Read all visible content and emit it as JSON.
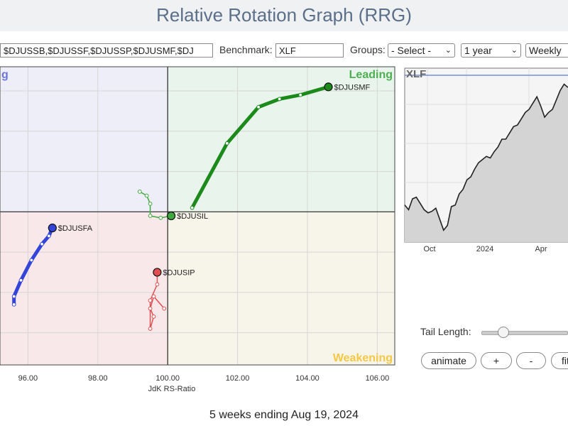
{
  "page_title": "Relative Rotation Graph (RRG)",
  "symbols_field_value": "$DJUSSB,$DJUSSF,$DJUSSP,$DJUSMF,$DJ",
  "benchmark_label": "Benchmark:",
  "benchmark_value": "XLF",
  "groups_label": "Groups:",
  "groups_selected": "- Select -",
  "period_selected": "1 year",
  "frequency_selected": "Weekly",
  "tail_length_label": "Tail Length:",
  "tail_length_level": 0.25,
  "buttons": {
    "animate": "animate",
    "plus": "+",
    "minus": "-",
    "fit": "fit"
  },
  "footer": "5 weeks ending Aug 19, 2024",
  "colors": {
    "improving_bg": "#eeeef9",
    "leading_bg": "#e9f4ec",
    "lagging_bg": "#f9e8ea",
    "weakening_bg": "#f7f4ea",
    "improving_text": "#6b74d8",
    "leading_text": "#4caf50",
    "weakening_text": "#f5c842"
  },
  "chart_data": [
    {
      "type": "scatter",
      "title": "",
      "xlabel": "JdK RS-Ratio",
      "ylabel": "",
      "xlim": [
        95.2,
        106.5
      ],
      "ylim": [
        96.2,
        103.6
      ],
      "x_ticks": [
        "96.00",
        "98.00",
        "100.00",
        "102.00",
        "104.00",
        "106.00"
      ],
      "y_ticks": [],
      "grid": true,
      "quadrant_labels": {
        "improving": "g",
        "leading": "Leading",
        "weakening": "Weakening"
      },
      "series": [
        {
          "name": "$DJUSMF",
          "color": "#1b8a1b",
          "points": [
            [
              100.7,
              100.1
            ],
            [
              101.7,
              101.7
            ],
            [
              102.6,
              102.6
            ],
            [
              103.2,
              102.8
            ],
            [
              103.8,
              102.9
            ],
            [
              104.6,
              103.1
            ]
          ]
        },
        {
          "name": "$DJUSIL",
          "color": "#3fa83f",
          "points": [
            [
              99.2,
              100.5
            ],
            [
              99.4,
              100.4
            ],
            [
              99.5,
              100.2
            ],
            [
              99.5,
              99.9
            ],
            [
              99.8,
              99.85
            ],
            [
              100.1,
              99.9
            ]
          ]
        },
        {
          "name": "$DJUSFA",
          "color": "#3345d9",
          "points": [
            [
              95.6,
              97.7
            ],
            [
              95.6,
              97.9
            ],
            [
              95.8,
              98.3
            ],
            [
              96.1,
              98.8
            ],
            [
              96.4,
              99.2
            ],
            [
              96.6,
              99.4
            ],
            [
              96.7,
              99.6
            ]
          ]
        },
        {
          "name": "$DJUSIP",
          "color": "#e05050",
          "points": [
            [
              99.9,
              97.6
            ],
            [
              99.6,
              97.9
            ],
            [
              99.5,
              97.6
            ],
            [
              99.6,
              97.4
            ],
            [
              99.5,
              97.1
            ],
            [
              99.5,
              97.8
            ],
            [
              99.7,
              98.2
            ],
            [
              99.7,
              98.5
            ]
          ]
        }
      ]
    },
    {
      "type": "area",
      "title": "XLF",
      "x_ticks": [
        "Oct",
        "2024",
        "Apr"
      ],
      "values": [
        31.5,
        31.2,
        31.9,
        32.0,
        31.6,
        31.2,
        31.0,
        31.1,
        31.3,
        30.6,
        29.9,
        30.2,
        31.4,
        31.5,
        32.2,
        32.5,
        33.1,
        33.3,
        33.8,
        34.2,
        34.4,
        34.6,
        34.5,
        34.9,
        35.2,
        35.7,
        35.7,
        36.1,
        36.5,
        36.6,
        37.0,
        37.4,
        37.6,
        38.0,
        38.4,
        37.8,
        37.1,
        37.4,
        37.6,
        38.2,
        38.8,
        39.2,
        39.0
      ]
    }
  ]
}
